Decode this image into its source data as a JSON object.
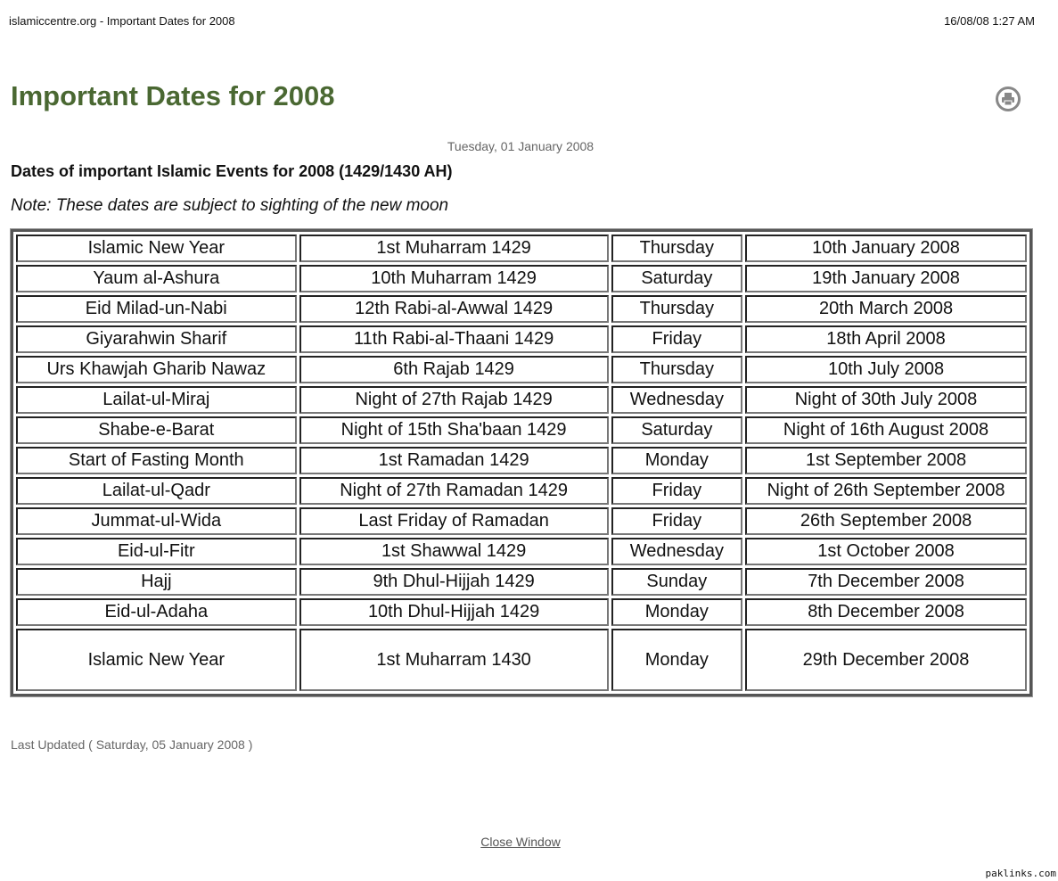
{
  "print_header": {
    "left": "islamiccentre.org - Important Dates for 2008",
    "right": "16/08/08 1:27 AM"
  },
  "article": {
    "title": "Important Dates for 2008",
    "print_icon": "printer-icon",
    "created_date": "Tuesday, 01 January 2008",
    "subtitle": "Dates of important Islamic Events for 2008 (1429/1430 AH)",
    "note": "Note: These dates are subject to sighting of the new moon",
    "title_color": "#4a6832"
  },
  "events": [
    [
      "Islamic New Year",
      "1st Muharram 1429",
      "Thursday",
      "10th January 2008"
    ],
    [
      "Yaum al-Ashura",
      "10th Muharram 1429",
      "Saturday",
      "19th January 2008"
    ],
    [
      "Eid Milad-un-Nabi",
      "12th Rabi-al-Awwal 1429",
      "Thursday",
      "20th March 2008"
    ],
    [
      "Giyarahwin Sharif",
      "11th Rabi-al-Thaani 1429",
      "Friday",
      "18th April 2008"
    ],
    [
      "Urs Khawjah Gharib Nawaz",
      "6th Rajab 1429",
      "Thursday",
      "10th July 2008"
    ],
    [
      "Lailat-ul-Miraj",
      "Night of 27th Rajab 1429",
      "Wednesday",
      "Night of 30th July 2008"
    ],
    [
      "Shabe-e-Barat",
      "Night of 15th Sha'baan 1429",
      "Saturday",
      "Night of 16th August 2008"
    ],
    [
      "Start of Fasting Month",
      "1st Ramadan 1429",
      "Monday",
      "1st September 2008"
    ],
    [
      "Lailat-ul-Qadr",
      "Night of 27th Ramadan 1429",
      "Friday",
      "Night of 26th September 2008"
    ],
    [
      "Jummat-ul-Wida",
      "Last Friday of Ramadan",
      "Friday",
      "26th September 2008"
    ],
    [
      "Eid-ul-Fitr",
      "1st Shawwal 1429",
      "Wednesday",
      "1st October 2008"
    ],
    [
      "Hajj",
      "9th Dhul-Hijjah 1429",
      "Sunday",
      "7th December 2008"
    ],
    [
      "Eid-ul-Adaha",
      "10th Dhul-Hijjah 1429",
      "Monday",
      "8th December 2008"
    ],
    [
      "Islamic New Year",
      "1st Muharram 1430",
      "Monday",
      "29th December 2008"
    ]
  ],
  "last_updated": "Last Updated ( Saturday, 05 January 2008 )",
  "close_window": "Close Window",
  "footer": "paklinks.com"
}
